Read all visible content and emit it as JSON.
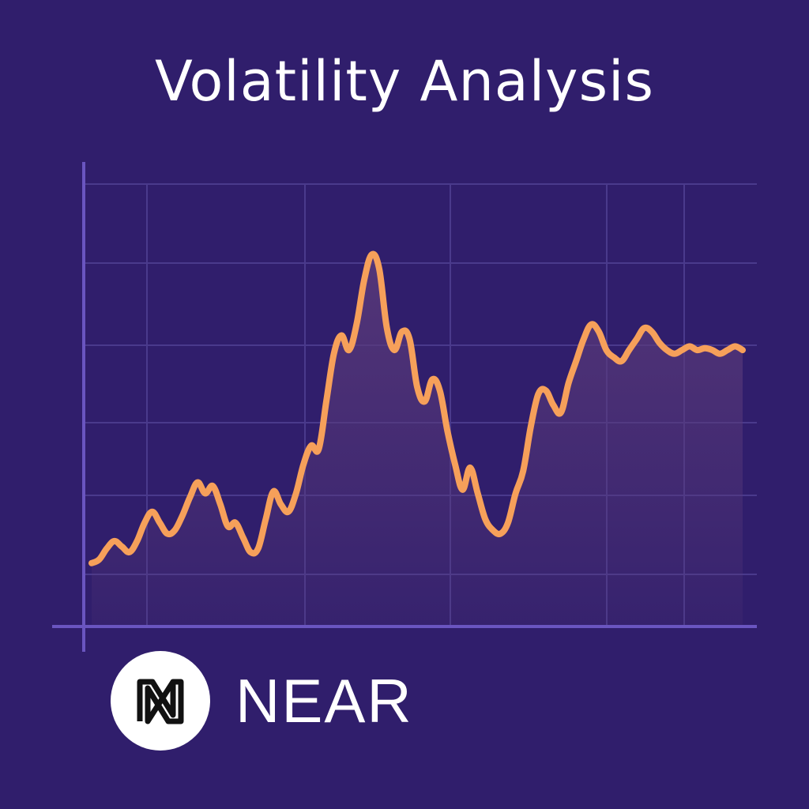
{
  "title": "Volatility Analysis",
  "brand": {
    "name": "NEAR",
    "logo_icon": "near-logo-icon"
  },
  "colors": {
    "background": "#301e6c",
    "line": "#f6a05a",
    "grid": "#4a3a8c",
    "axis": "#6a55c0",
    "fill": "#5a3a7a"
  },
  "chart_data": {
    "type": "area",
    "title": "Volatility Analysis",
    "xlabel": "",
    "ylabel": "",
    "grid": true,
    "x": [
      0,
      1,
      2,
      3,
      4,
      5,
      6,
      7,
      8,
      9,
      10,
      11,
      12,
      13,
      14,
      15,
      16,
      17,
      18,
      19,
      20,
      21,
      22,
      23,
      24,
      25,
      26,
      27,
      28,
      29,
      30,
      31,
      32,
      33,
      34,
      35,
      36,
      37,
      38,
      39,
      40,
      41,
      42,
      43,
      44,
      45,
      46,
      47,
      48,
      49,
      50,
      51,
      52,
      53,
      54,
      55,
      56,
      57,
      58,
      59,
      60,
      61,
      62,
      63,
      64,
      65,
      66,
      67,
      68,
      69,
      70,
      71,
      72,
      73,
      74,
      75,
      76,
      77,
      78,
      79,
      80,
      81,
      82,
      83,
      84,
      85,
      86
    ],
    "y": [
      8.0,
      9.0,
      12.0,
      14.0,
      12.5,
      11.0,
      14.0,
      19.0,
      22.0,
      19.0,
      16.0,
      17.0,
      21.0,
      26.0,
      30.0,
      27.0,
      29.0,
      24.0,
      18.0,
      19.0,
      15.0,
      11.0,
      12.0,
      20.0,
      27.5,
      24.0,
      22.0,
      27.0,
      35.0,
      40.0,
      39.0,
      52.0,
      65.0,
      70.0,
      66.0,
      73.0,
      85.0,
      92.0,
      88.0,
      72.0,
      66.0,
      71.0,
      69.0,
      56.0,
      52.0,
      58.0,
      55.0,
      44.0,
      35.0,
      28.0,
      34.0,
      27.0,
      20.0,
      17.0,
      16.0,
      19.0,
      27.0,
      33.0,
      45.0,
      54.0,
      55.0,
      51.0,
      49.0,
      57.0,
      63.0,
      69.0,
      73.0,
      71.0,
      66.0,
      64.0,
      63.0,
      66.0,
      69.0,
      72.0,
      71.0,
      68.0,
      66.0,
      65.0,
      66.0,
      67.0,
      66.0,
      66.5,
      66.0,
      65.0,
      66.0,
      67.0,
      66.0
    ]
  }
}
